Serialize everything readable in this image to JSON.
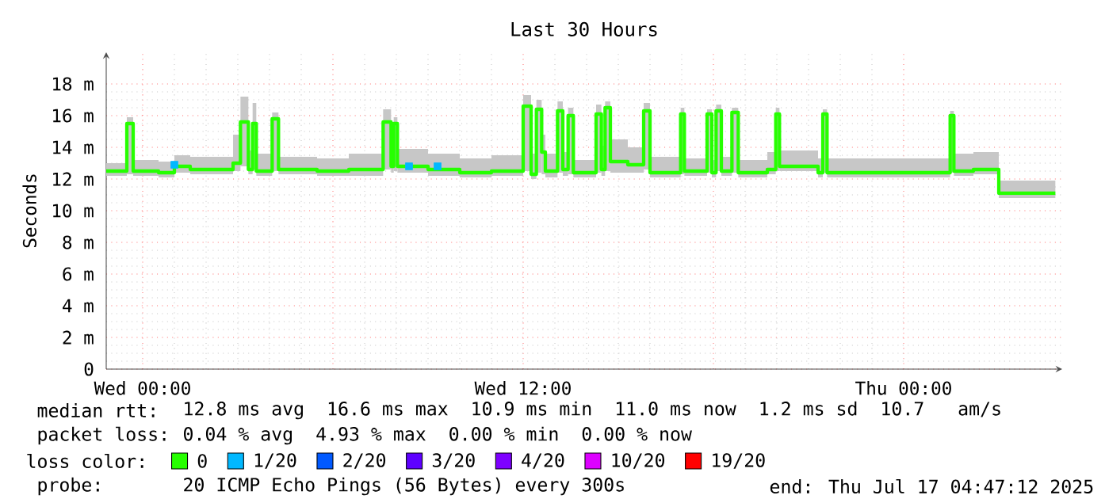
{
  "chart_data": {
    "type": "step",
    "title": "Last 30 Hours",
    "ylabel": "Seconds",
    "legend_title": "loss color:",
    "legend": "bottom",
    "grid": true,
    "xlim": [
      "2025-07-15T22:51",
      "2025-07-17T05:00"
    ],
    "xticks": [
      {
        "value": "2025-07-16T00:00",
        "label": "Wed 00:00"
      },
      {
        "value": "2025-07-16T06:00",
        "label": null
      },
      {
        "value": "2025-07-16T12:00",
        "label": "Wed 12:00"
      },
      {
        "value": "2025-07-16T18:00",
        "label": null
      },
      {
        "value": "2025-07-17T00:00",
        "label": "Thu 00:00"
      }
    ],
    "ylim": [
      0,
      20
    ],
    "yticks": [
      0,
      {
        "value": 2,
        "label": "2 m"
      },
      {
        "value": 4,
        "label": "4 m"
      },
      {
        "value": 6,
        "label": "6 m"
      },
      {
        "value": 8,
        "label": "8 m"
      },
      {
        "value": 10,
        "label": "10 m"
      },
      {
        "value": 12,
        "label": "12 m"
      },
      {
        "value": 14,
        "label": "14 m"
      },
      {
        "value": 16,
        "label": "16 m"
      },
      {
        "value": 18,
        "label": "18 m"
      }
    ],
    "series": [
      {
        "name": "0",
        "color": "#26ff00",
        "x": [
          "2025-07-15T22:51",
          "2025-07-15T23:30",
          "2025-07-15T23:42",
          "2025-07-16T00:30",
          "2025-07-16T01:00",
          "2025-07-16T01:30",
          "2025-07-16T02:51",
          "2025-07-16T03:05",
          "2025-07-16T03:20",
          "2025-07-16T03:28",
          "2025-07-16T03:35",
          "2025-07-16T04:05",
          "2025-07-16T04:17",
          "2025-07-16T05:30",
          "2025-07-16T06:30",
          "2025-07-16T07:35",
          "2025-07-16T07:50",
          "2025-07-16T07:55",
          "2025-07-16T08:02",
          "2025-07-16T09:00",
          "2025-07-16T10:00",
          "2025-07-16T11:00",
          "2025-07-16T12:00",
          "2025-07-16T12:15",
          "2025-07-16T12:25",
          "2025-07-16T12:35",
          "2025-07-16T12:42",
          "2025-07-16T13:05",
          "2025-07-16T13:15",
          "2025-07-16T13:25",
          "2025-07-16T13:35",
          "2025-07-16T14:18",
          "2025-07-16T14:28",
          "2025-07-16T14:35",
          "2025-07-16T14:45",
          "2025-07-16T15:18",
          "2025-07-16T15:48",
          "2025-07-16T16:00",
          "2025-07-16T16:58",
          "2025-07-16T17:05",
          "2025-07-16T17:48",
          "2025-07-16T17:57",
          "2025-07-16T18:05",
          "2025-07-16T18:15",
          "2025-07-16T18:35",
          "2025-07-16T18:47",
          "2025-07-16T19:42",
          "2025-07-16T19:58",
          "2025-07-16T20:05",
          "2025-07-16T21:18",
          "2025-07-16T21:27",
          "2025-07-16T21:35",
          "2025-07-16T23:00",
          "2025-07-17T01:28",
          "2025-07-17T01:35",
          "2025-07-17T02:12",
          "2025-07-17T03:00",
          "2025-07-17T04:47"
        ],
        "values": [
          12.5,
          15.5,
          12.5,
          12.4,
          12.8,
          12.6,
          13.0,
          15.6,
          12.6,
          15.5,
          12.5,
          15.8,
          12.6,
          12.5,
          12.6,
          15.6,
          12.8,
          15.5,
          12.8,
          12.6,
          12.4,
          12.5,
          16.6,
          12.3,
          16.4,
          13.7,
          12.5,
          16.3,
          12.6,
          16.0,
          12.4,
          16.1,
          12.6,
          16.5,
          13.1,
          12.9,
          16.3,
          12.4,
          16.1,
          12.5,
          16.1,
          12.4,
          16.3,
          12.5,
          16.2,
          12.4,
          12.6,
          16.1,
          12.8,
          12.4,
          16.1,
          12.4,
          12.4,
          16.0,
          12.5,
          12.6,
          11.1,
          11.1
        ],
        "lower": [
          12.2,
          12.3,
          12.2,
          12.1,
          12.4,
          12.3,
          12.5,
          12.8,
          12.3,
          12.6,
          12.2,
          12.5,
          12.3,
          12.2,
          12.2,
          12.6,
          12.4,
          12.5,
          12.4,
          12.2,
          12.1,
          12.2,
          12.5,
          12.0,
          12.4,
          12.3,
          12.1,
          12.4,
          12.2,
          12.3,
          12.1,
          12.4,
          12.2,
          12.5,
          12.4,
          12.4,
          12.6,
          12.1,
          12.3,
          12.2,
          12.4,
          12.1,
          12.5,
          12.2,
          12.4,
          12.1,
          12.3,
          12.5,
          12.5,
          12.1,
          12.4,
          12.1,
          12.1,
          12.4,
          12.2,
          12.3,
          10.8,
          10.8
        ],
        "upper": [
          13.0,
          15.9,
          13.2,
          13.1,
          13.5,
          13.4,
          14.8,
          17.2,
          13.8,
          16.8,
          13.6,
          16.2,
          13.4,
          13.3,
          13.6,
          16.4,
          14.5,
          15.9,
          13.9,
          13.6,
          13.3,
          13.5,
          17.3,
          13.6,
          17.0,
          14.8,
          13.6,
          16.9,
          13.7,
          16.5,
          13.2,
          16.7,
          14.1,
          16.9,
          14.5,
          14.0,
          16.8,
          13.4,
          16.5,
          13.3,
          16.4,
          13.2,
          16.7,
          13.4,
          16.5,
          13.2,
          13.7,
          16.5,
          13.8,
          13.3,
          16.4,
          13.3,
          13.3,
          16.3,
          13.6,
          13.7,
          11.9,
          11.9
        ]
      },
      {
        "name": "1/20",
        "color": "#00b8ff",
        "type": "scatter",
        "marker": "square",
        "x": [
          "2025-07-16T01:00",
          "2025-07-16T08:24",
          "2025-07-16T09:18"
        ],
        "values": [
          12.9,
          12.8,
          12.8
        ]
      },
      {
        "name": "2/20",
        "color": "#0059ff"
      },
      {
        "name": "3/20",
        "color": "#5e00ff"
      },
      {
        "name": "4/20",
        "color": "#7e00ff"
      },
      {
        "name": "10/20",
        "color": "#dd00ff"
      },
      {
        "name": "19/20",
        "color": "#ff0000"
      }
    ],
    "annotations": [
      "median rtt:",
      "12.8 ms avg  16.6 ms max  10.9 ms min  11.0 ms now  1.2 ms sd  10.7   am/s",
      "packet loss:",
      "0.04 % avg  4.93 % max  0.00 % min  0.00 % now",
      "probe:",
      "20 ICMP Echo Pings (56 Bytes) every 300s",
      "end: Thu Jul 17 04:47:12 2025"
    ]
  }
}
